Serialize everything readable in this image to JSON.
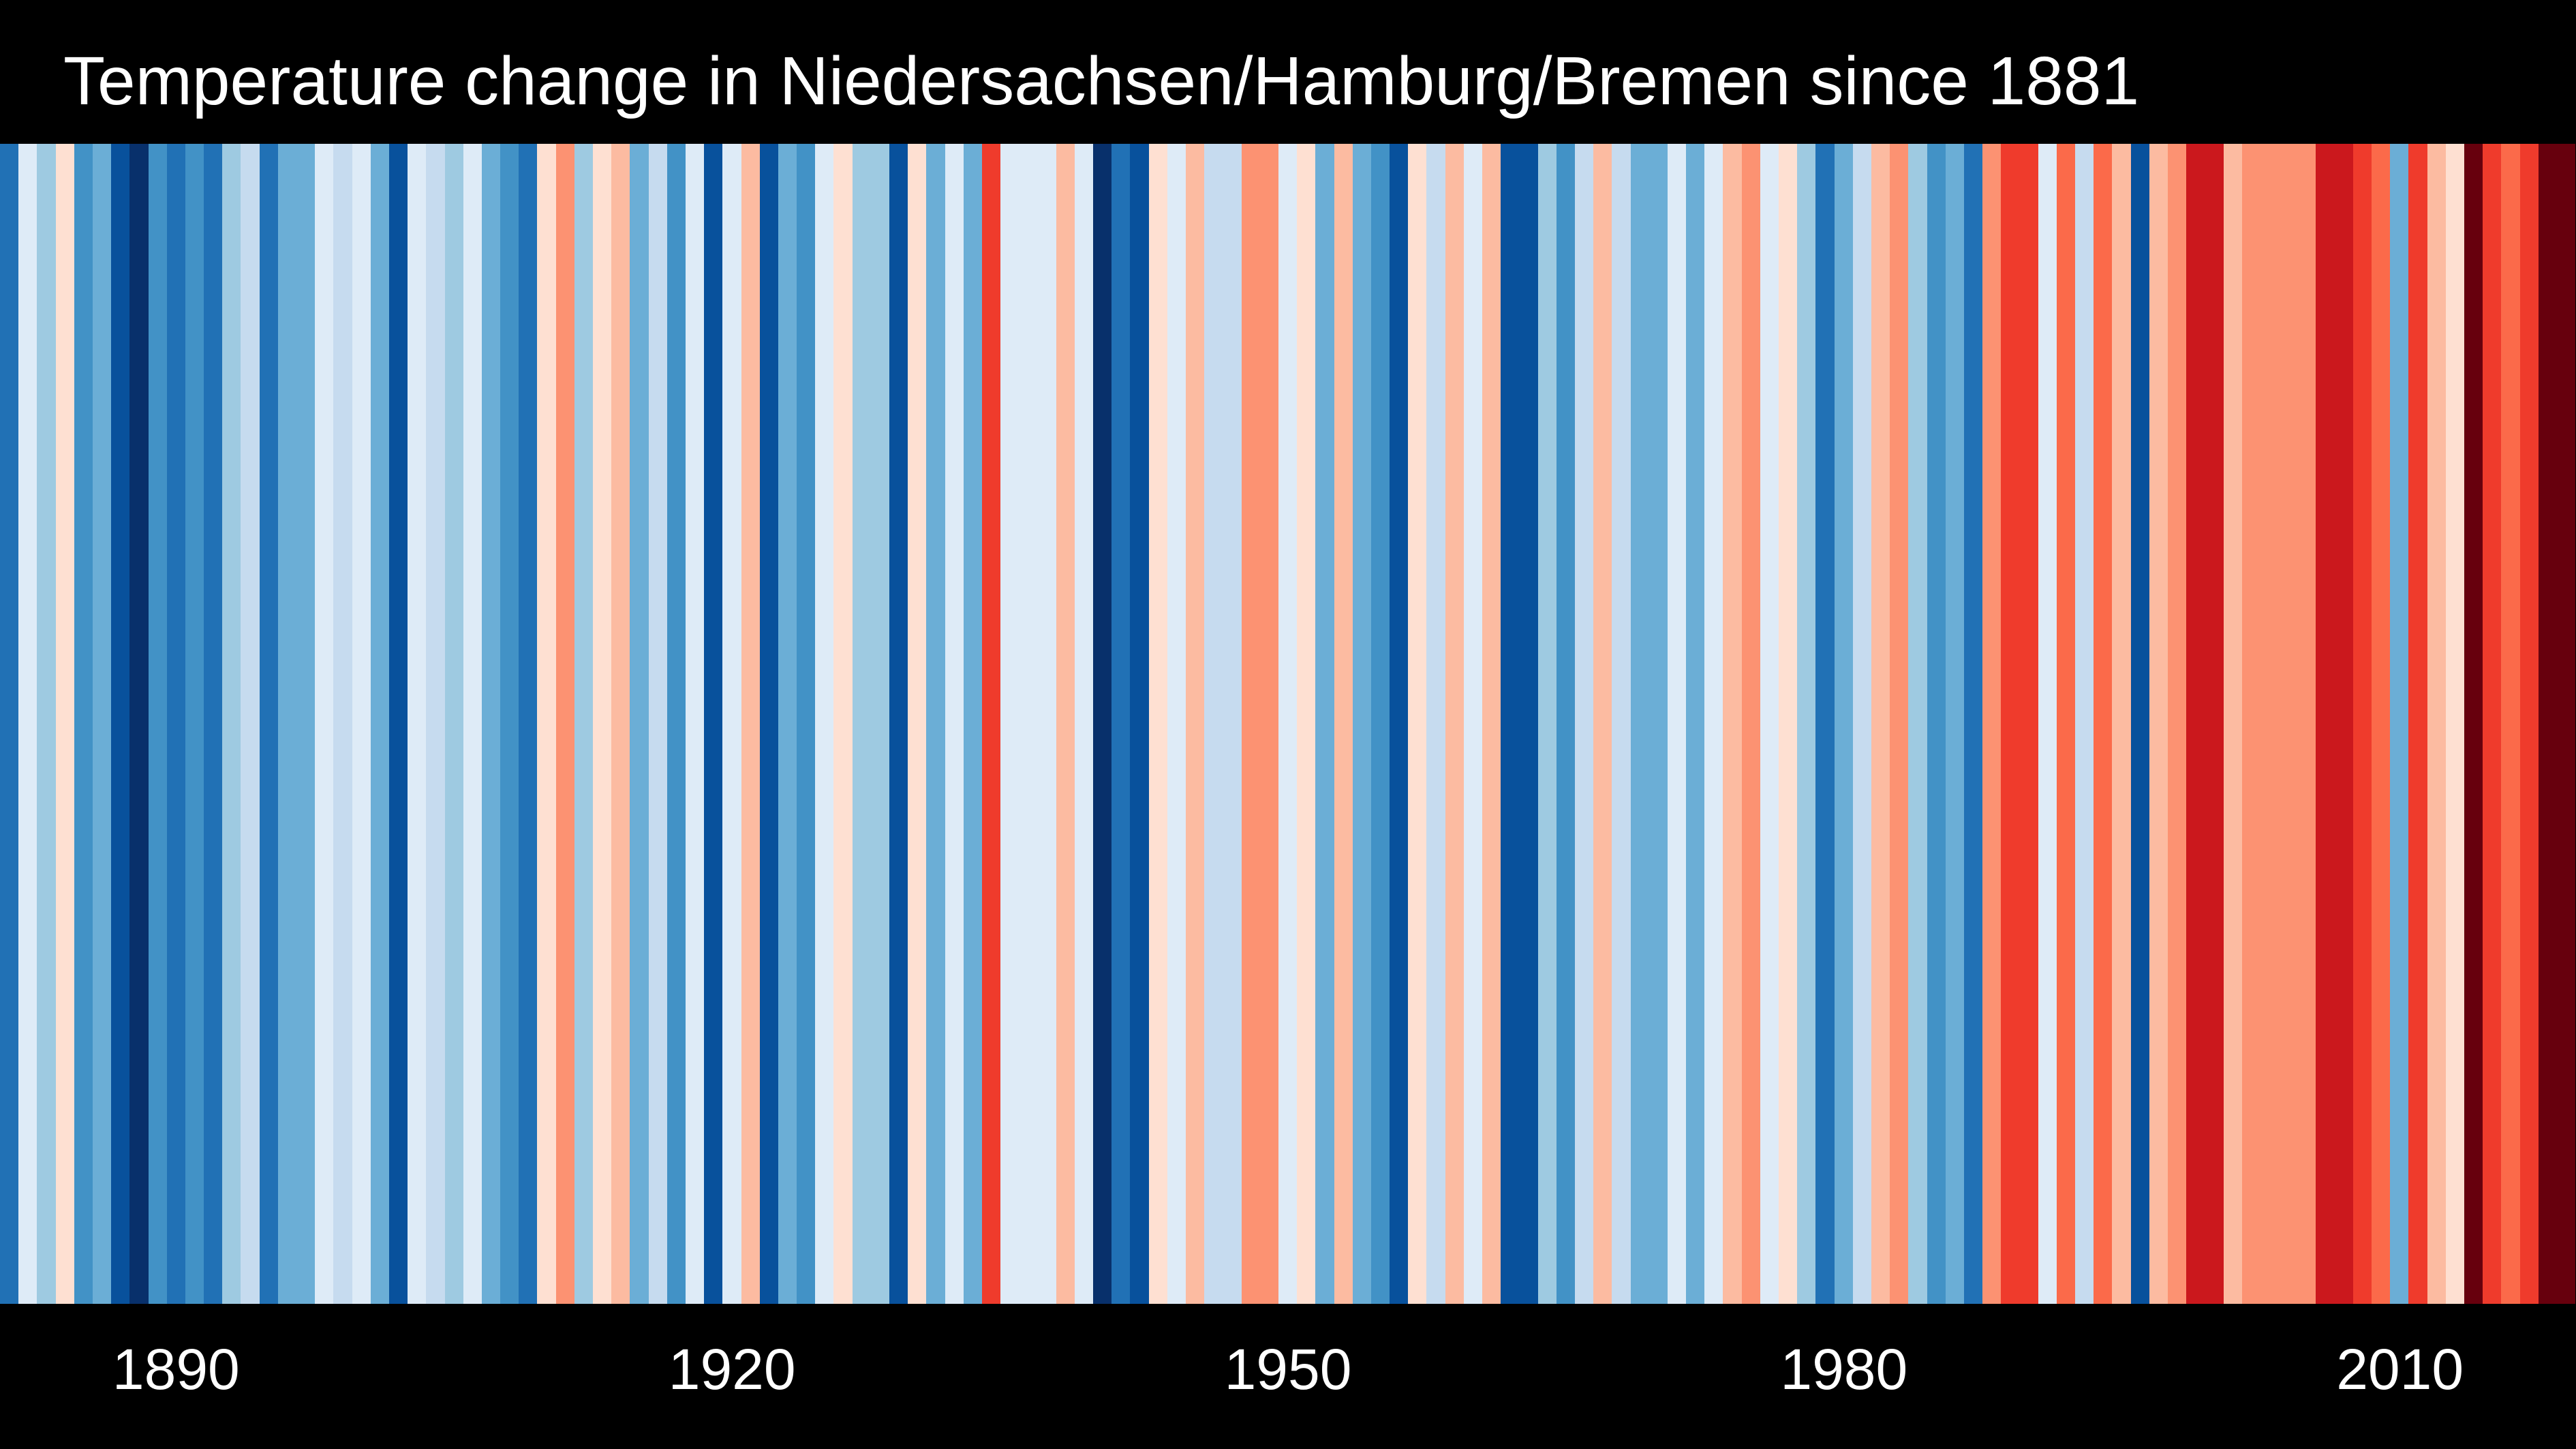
{
  "header": {
    "title": "Temperature change in Niedersachsen/Hamburg/Bremen since 1881"
  },
  "colors": {
    "background": "#000000",
    "text": "#ffffff"
  },
  "axis": {
    "ticks": [
      {
        "label": "1890",
        "year": 1890
      },
      {
        "label": "1920",
        "year": 1920
      },
      {
        "label": "1950",
        "year": 1950
      },
      {
        "label": "1980",
        "year": 1980
      },
      {
        "label": "2010",
        "year": 2010
      }
    ]
  },
  "chart_data": {
    "type": "heatmap",
    "variant": "warming-stripes",
    "title": "Temperature change in Niedersachsen/Hamburg/Bremen since 1881",
    "start_year": 1881,
    "end_year": 2019,
    "legend": "none",
    "grid": false,
    "palette": [
      "#08306b",
      "#08519c",
      "#2171b5",
      "#4292c6",
      "#6baed6",
      "#9ecae1",
      "#c6dbef",
      "#deebf7",
      "#fee0d2",
      "#fcbba1",
      "#fc9272",
      "#fb6a4a",
      "#ef3b2c",
      "#cb181d",
      "#a50f15",
      "#67000d"
    ],
    "stripe_colors": [
      "#2171b5",
      "#deebf7",
      "#9ecae1",
      "#fee0d2",
      "#4292c6",
      "#6baed6",
      "#08519c",
      "#08306b",
      "#4292c6",
      "#2171b5",
      "#4292c6",
      "#2171b5",
      "#9ecae1",
      "#c6dbef",
      "#2171b5",
      "#6baed6",
      "#6baed6",
      "#deebf7",
      "#c6dbef",
      "#deebf7",
      "#6baed6",
      "#08519c",
      "#deebf7",
      "#c6dbef",
      "#9ecae1",
      "#deebf7",
      "#6baed6",
      "#4292c6",
      "#2171b5",
      "#fee0d2",
      "#fc9272",
      "#9ecae1",
      "#fee0d2",
      "#fcbba1",
      "#6baed6",
      "#c6dbef",
      "#4292c6",
      "#deebf7",
      "#08519c",
      "#deebf7",
      "#fcbba1",
      "#08519c",
      "#6baed6",
      "#4292c6",
      "#deebf7",
      "#fee0d2",
      "#9ecae1",
      "#9ecae1",
      "#08519c",
      "#fee0d2",
      "#6baed6",
      "#deebf7",
      "#6baed6",
      "#ef3b2c",
      "#deebf7",
      "#deebf7",
      "#deebf7",
      "#fcbba1",
      "#deebf7",
      "#08306b",
      "#2171b5",
      "#08519c",
      "#fee0d2",
      "#deebf7",
      "#fcbba1",
      "#c6dbef",
      "#c6dbef",
      "#fc9272",
      "#fc9272",
      "#deebf7",
      "#fee0d2",
      "#6baed6",
      "#fcbba1",
      "#6baed6",
      "#4292c6",
      "#08519c",
      "#fee0d2",
      "#c6dbef",
      "#fcbba1",
      "#deebf7",
      "#fcbba1",
      "#08519c",
      "#08519c",
      "#9ecae1",
      "#4292c6",
      "#c6dbef",
      "#fcbba1",
      "#c6dbef",
      "#6baed6",
      "#6baed6",
      "#deebf7",
      "#6baed6",
      "#deebf7",
      "#fcbba1",
      "#fc9272",
      "#deebf7",
      "#fee0d2",
      "#9ecae1",
      "#2171b5",
      "#6baed6",
      "#c6dbef",
      "#fcbba1",
      "#fc9272",
      "#9ecae1",
      "#4292c6",
      "#6baed6",
      "#2171b5",
      "#fc9272",
      "#ef3b2c",
      "#ef3b2c",
      "#deebf7",
      "#fb6a4a",
      "#c6dbef",
      "#fb6a4a",
      "#fcbba1",
      "#08519c",
      "#fcbba1",
      "#fc9272",
      "#cb181d",
      "#cb181d",
      "#fcbba1",
      "#fc9272",
      "#fc9272",
      "#fc9272",
      "#fc9272",
      "#cb181d",
      "#cb181d",
      "#ef3b2c",
      "#fb6a4a",
      "#6baed6",
      "#ef3b2c",
      "#fcbba1",
      "#fee0d2",
      "#67000d",
      "#ef3b2c",
      "#fb6a4a",
      "#ef3b2c",
      "#67000d",
      "#67000d"
    ]
  }
}
